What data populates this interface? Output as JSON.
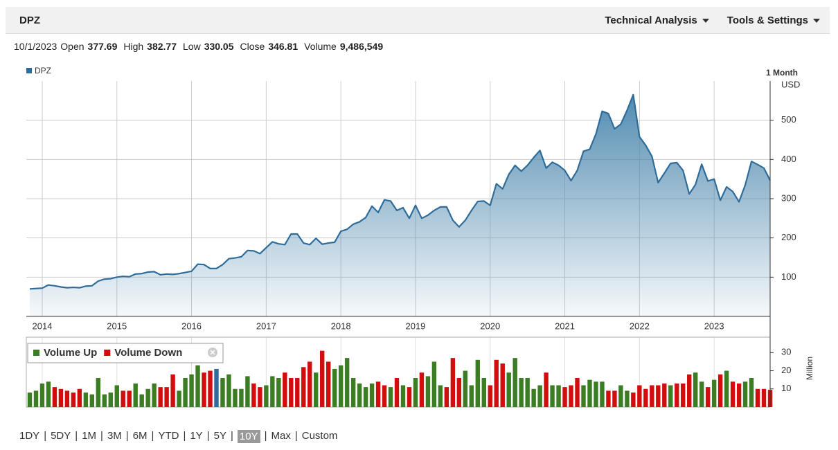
{
  "header": {
    "symbol": "DPZ",
    "menus": [
      "Technical Analysis",
      "Tools & Settings"
    ]
  },
  "quote": {
    "date": "10/1/2023",
    "fields": [
      {
        "label": "Open",
        "value": "377.69"
      },
      {
        "label": "High",
        "value": "382.77"
      },
      {
        "label": "Low",
        "value": "330.05"
      },
      {
        "label": "Close",
        "value": "346.81"
      },
      {
        "label": "Volume",
        "value": "9,486,549"
      }
    ]
  },
  "chart_data": [
    {
      "type": "area",
      "period": "1 Month",
      "y_label": "USD",
      "categories": [
        null,
        null,
        "2014",
        null,
        null,
        null,
        null,
        null,
        null,
        null,
        null,
        null,
        null,
        null,
        "2015",
        null,
        null,
        null,
        null,
        null,
        null,
        null,
        null,
        null,
        null,
        null,
        "2016",
        null,
        null,
        null,
        null,
        null,
        null,
        null,
        null,
        null,
        null,
        null,
        "2017",
        null,
        null,
        null,
        null,
        null,
        null,
        null,
        null,
        null,
        null,
        null,
        "2018",
        null,
        null,
        null,
        null,
        null,
        null,
        null,
        null,
        null,
        null,
        null,
        "2019",
        null,
        null,
        null,
        null,
        null,
        null,
        null,
        null,
        null,
        null,
        null,
        "2020",
        null,
        null,
        null,
        null,
        null,
        null,
        null,
        null,
        null,
        null,
        null,
        "2021",
        null,
        null,
        null,
        null,
        null,
        null,
        null,
        null,
        null,
        null,
        null,
        "2022",
        null,
        null,
        null,
        null,
        null,
        null,
        null,
        null,
        null,
        null,
        null,
        "2023",
        null,
        null,
        null,
        null,
        null,
        null,
        null,
        null,
        null
      ],
      "series": [
        {
          "name": "DPZ",
          "color": "#2e6c9a",
          "values": [
            70,
            71,
            72,
            80,
            78,
            75,
            73,
            74,
            73,
            77,
            78,
            90,
            95,
            96,
            100,
            102,
            101,
            108,
            109,
            113,
            114,
            106,
            108,
            107,
            109,
            112,
            115,
            133,
            132,
            122,
            122,
            132,
            147,
            149,
            152,
            168,
            167,
            160,
            175,
            190,
            185,
            183,
            210,
            210,
            187,
            183,
            199,
            184,
            187,
            189,
            217,
            222,
            235,
            241,
            252,
            281,
            265,
            297,
            294,
            270,
            277,
            250,
            283,
            250,
            258,
            270,
            279,
            279,
            245,
            228,
            245,
            270,
            293,
            294,
            283,
            338,
            325,
            362,
            385,
            370,
            385,
            405,
            423,
            378,
            393,
            385,
            372,
            346,
            372,
            421,
            426,
            465,
            523,
            517,
            478,
            490,
            525,
            565,
            458,
            436,
            408,
            341,
            365,
            390,
            392,
            372,
            312,
            336,
            388,
            345,
            350,
            296,
            330,
            318,
            292,
            335,
            395,
            387,
            378,
            346.81
          ]
        }
      ],
      "ylim": [
        0,
        600
      ],
      "yticks": [
        100,
        200,
        300,
        400,
        500
      ],
      "grid": true,
      "legend": "top-left"
    },
    {
      "type": "bar",
      "y_label": "Million",
      "series": [
        {
          "name": "Volume Up",
          "color": "#3a7d22",
          "values": [
            8,
            9,
            13,
            14,
            null,
            null,
            null,
            null,
            null,
            8,
            7,
            16,
            7,
            8,
            12,
            null,
            null,
            13,
            7,
            10,
            13,
            null,
            null,
            null,
            9,
            16,
            18,
            23,
            null,
            null,
            21,
            16,
            18,
            10,
            10,
            17,
            null,
            null,
            12,
            17,
            16,
            null,
            null,
            null,
            null,
            null,
            19,
            null,
            null,
            21,
            23,
            27,
            16,
            13,
            11,
            13,
            null,
            null,
            11,
            null,
            12,
            null,
            16,
            null,
            17,
            25,
            12,
            null,
            null,
            null,
            20,
            12,
            26,
            16,
            null,
            null,
            null,
            19,
            27,
            16,
            16,
            10,
            12,
            null,
            12,
            12,
            null,
            null,
            null,
            12,
            15,
            14,
            14,
            null,
            null,
            12,
            9,
            null,
            null,
            null,
            null,
            null,
            null,
            12,
            null,
            null,
            null,
            19,
            14,
            null,
            15,
            null,
            20,
            null,
            null,
            14,
            16,
            null,
            null,
            null
          ]
        },
        {
          "name": "Volume Down",
          "color": "#d10d0d",
          "values": [
            null,
            null,
            null,
            null,
            11,
            10,
            9,
            8,
            10,
            null,
            null,
            null,
            null,
            null,
            null,
            9,
            9,
            null,
            null,
            null,
            null,
            11,
            11,
            18,
            null,
            null,
            null,
            null,
            19,
            20,
            null,
            null,
            null,
            null,
            null,
            null,
            13,
            11,
            null,
            null,
            null,
            19,
            16,
            16,
            22,
            25,
            null,
            31,
            25,
            null,
            null,
            null,
            null,
            null,
            null,
            null,
            14,
            12,
            null,
            16,
            null,
            11,
            null,
            19,
            null,
            null,
            null,
            11,
            27,
            16,
            null,
            null,
            null,
            null,
            12,
            26,
            24,
            null,
            null,
            null,
            null,
            null,
            null,
            19,
            null,
            null,
            11,
            12,
            16,
            null,
            null,
            null,
            null,
            9,
            9,
            null,
            null,
            8,
            12,
            10,
            12,
            12,
            13,
            null,
            13,
            13,
            18,
            null,
            null,
            11,
            null,
            18,
            null,
            14,
            13,
            null,
            null,
            10,
            10,
            9.486549
          ]
        }
      ],
      "ylim": [
        0,
        38.5
      ],
      "yticks": [
        10,
        20,
        30
      ],
      "grid": true,
      "legend": "top-left",
      "highlight": {
        "index": 30,
        "color": "#2e6c9a"
      }
    }
  ],
  "range_selector": {
    "options": [
      "1DY",
      "5DY",
      "1M",
      "3M",
      "6M",
      "YTD",
      "1Y",
      "5Y",
      "10Y",
      "Max",
      "Custom"
    ],
    "selected": 8
  }
}
